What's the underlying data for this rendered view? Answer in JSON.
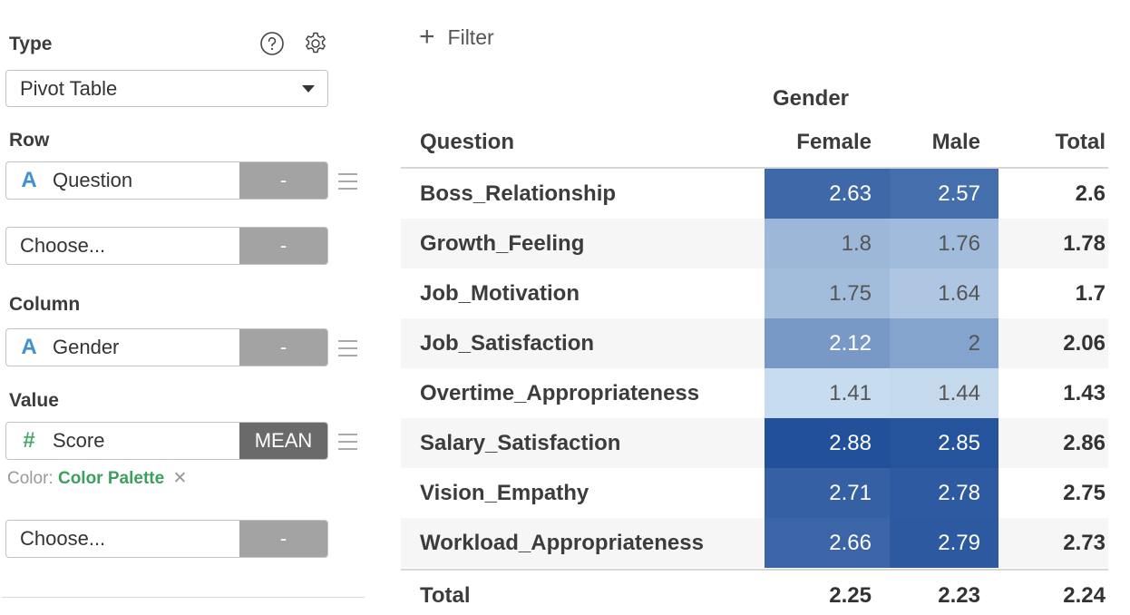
{
  "sidebar": {
    "type_label": "Type",
    "type_value": "Pivot Table",
    "row_label": "Row",
    "row_field": {
      "name": "Question",
      "type_glyph": "A",
      "agg": "-"
    },
    "row_choose": {
      "name": "Choose...",
      "agg": "-"
    },
    "column_label": "Column",
    "column_field": {
      "name": "Gender",
      "type_glyph": "A",
      "agg": "-"
    },
    "value_label": "Value",
    "value_field": {
      "name": "Score",
      "type_glyph": "#",
      "agg": "MEAN"
    },
    "color_prefix": "Color:",
    "color_value": "Color Palette",
    "color_clear": "✕",
    "value_choose": {
      "name": "Choose...",
      "agg": "-"
    }
  },
  "filter": {
    "label": "Filter"
  },
  "pivot": {
    "column_group": "Gender",
    "row_header": "Question",
    "columns": [
      "Female",
      "Male",
      "Total"
    ],
    "rows": [
      {
        "label": "Boss_Relationship",
        "female": "2.63",
        "male": "2.57",
        "total": "2.6"
      },
      {
        "label": "Growth_Feeling",
        "female": "1.8",
        "male": "1.76",
        "total": "1.78"
      },
      {
        "label": "Job_Motivation",
        "female": "1.75",
        "male": "1.64",
        "total": "1.7"
      },
      {
        "label": "Job_Satisfaction",
        "female": "2.12",
        "male": "2",
        "total": "2.06"
      },
      {
        "label": "Overtime_Appropriateness",
        "female": "1.41",
        "male": "1.44",
        "total": "1.43"
      },
      {
        "label": "Salary_Satisfaction",
        "female": "2.88",
        "male": "2.85",
        "total": "2.86"
      },
      {
        "label": "Vision_Empathy",
        "female": "2.71",
        "male": "2.78",
        "total": "2.75"
      },
      {
        "label": "Workload_Appropriateness",
        "female": "2.66",
        "male": "2.79",
        "total": "2.73"
      }
    ],
    "total_row": {
      "label": "Total",
      "female": "2.25",
      "male": "2.23",
      "total": "2.24"
    },
    "color_scale": {
      "min": 1.41,
      "max": 2.88,
      "low_color": "#c8dcef",
      "high_color": "#22509a"
    }
  },
  "icons": {
    "help": "help-icon",
    "settings": "gear-icon",
    "filter": "plus-icon",
    "drag": "drag-handle-icon",
    "caret": "chevron-down-icon"
  }
}
